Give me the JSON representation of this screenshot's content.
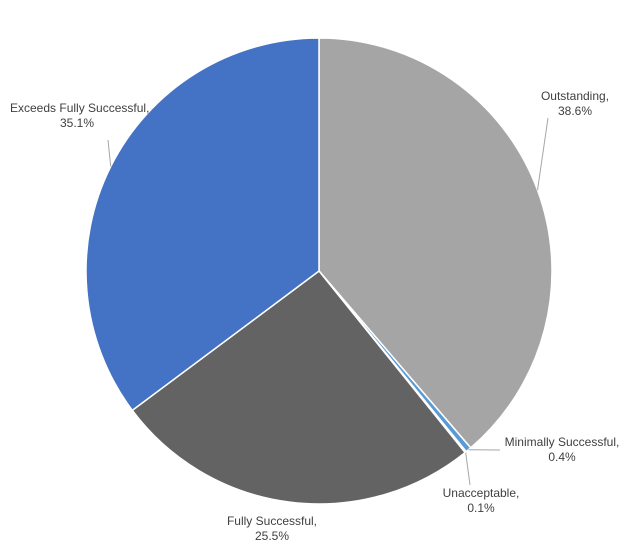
{
  "chart_data": {
    "type": "pie",
    "categories": [
      "Outstanding",
      "Minimally Successful",
      "Unacceptable",
      "Fully Successful",
      "Exceeds Fully Successful"
    ],
    "values": [
      38.6,
      0.4,
      0.1,
      25.5,
      35.1
    ],
    "value_labels": [
      "38.6%",
      "0.4%",
      "0.1%",
      "25.5%",
      "35.1%"
    ],
    "label_separator": ",",
    "colors": [
      "#a5a5a5",
      "#5b9bd5",
      "#ffffff",
      "#636363",
      "#4472c4"
    ]
  }
}
